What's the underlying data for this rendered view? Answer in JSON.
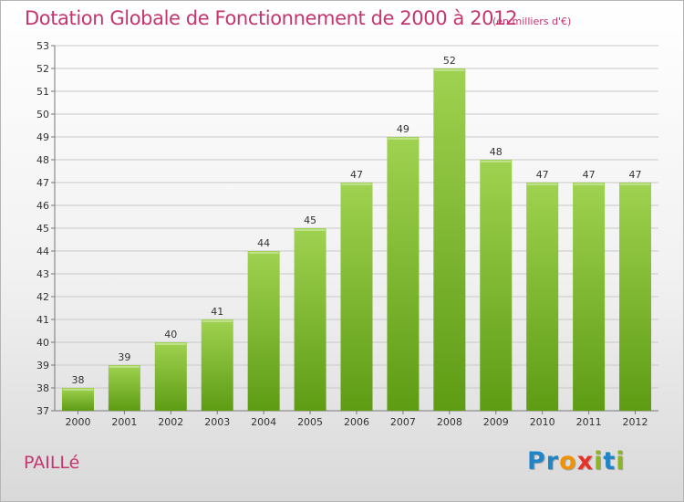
{
  "header": {
    "title": "Dotation Globale de Fonctionnement de 2000 à 2012",
    "unit": "(en milliers d'€)"
  },
  "footer": {
    "place": "PAILLé",
    "brand": "Proxiti",
    "brand_letters": [
      {
        "char": "P",
        "color": "#1e86c8"
      },
      {
        "char": "r",
        "color": "#1e86c8"
      },
      {
        "char": "o",
        "color": "#f39200"
      },
      {
        "char": "x",
        "color": "#e6332a"
      },
      {
        "char": "i",
        "color": "#8cb61d"
      },
      {
        "char": "t",
        "color": "#1e86c8"
      },
      {
        "char": "i",
        "color": "#8cb61d"
      }
    ]
  },
  "colors": {
    "text_accent": "#c5356f",
    "bar_light": "#9fd250",
    "bar_dark": "#5e9c14",
    "grid": "#c8c8c8"
  },
  "chart_data": {
    "type": "bar",
    "categories": [
      "2000",
      "2001",
      "2002",
      "2003",
      "2004",
      "2005",
      "2006",
      "2007",
      "2008",
      "2009",
      "2010",
      "2011",
      "2012"
    ],
    "values": [
      38,
      39,
      40,
      41,
      44,
      45,
      47,
      49,
      52,
      48,
      47,
      47,
      47
    ],
    "title": "Dotation Globale de Fonctionnement de 2000 à 2012",
    "subtitle": "(en milliers d'€)",
    "xlabel": "",
    "ylabel": "",
    "ylim": [
      37,
      53
    ],
    "yticks": [
      37,
      38,
      39,
      40,
      41,
      42,
      43,
      44,
      45,
      46,
      47,
      48,
      49,
      50,
      51,
      52,
      53
    ],
    "grid": true,
    "data_labels": true
  }
}
